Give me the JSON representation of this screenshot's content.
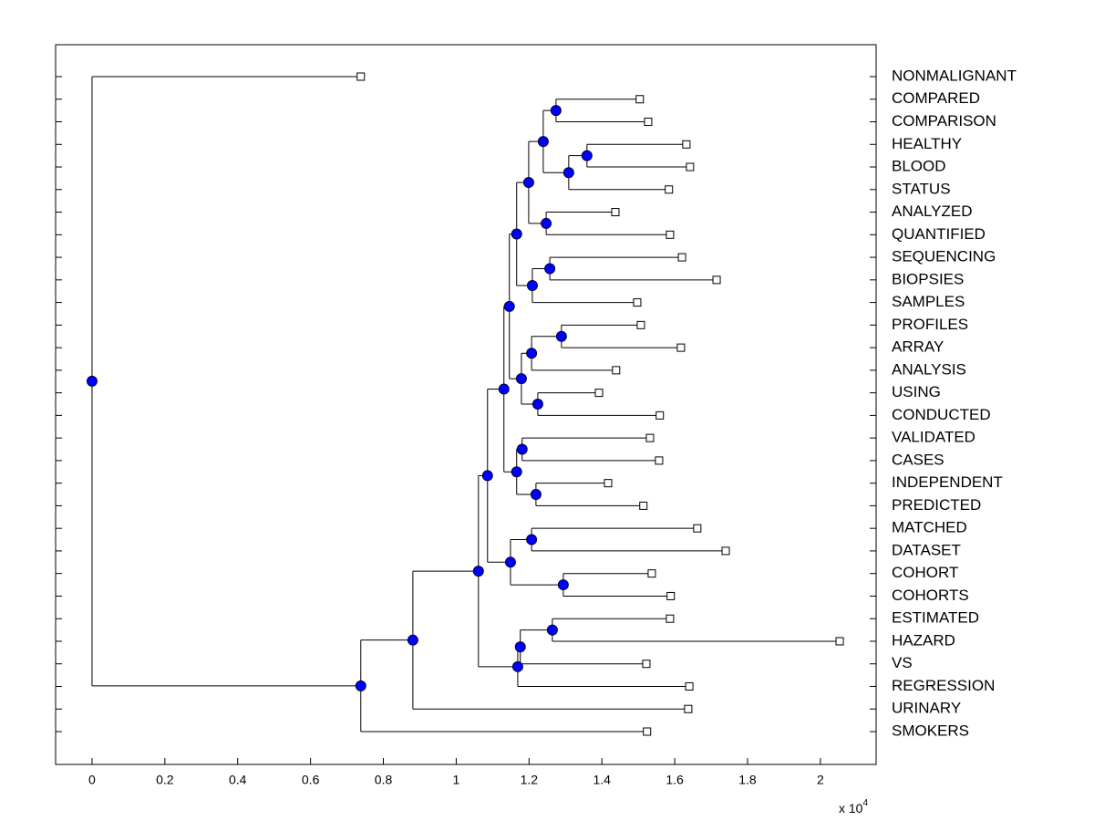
{
  "chart_data": {
    "type": "dendrogram",
    "orientation": "right",
    "xlim": [
      -0.1,
      2.153
    ],
    "xticks": [
      0,
      0.2,
      0.4,
      0.6,
      0.8,
      1,
      1.2,
      1.4,
      1.6,
      1.8,
      2
    ],
    "offset_text": {
      "base": "x 10",
      "exponent": "4"
    },
    "node_color": "#0000ff",
    "leaves": [
      {
        "label": "NONMALIGNANT",
        "value": 0.738
      },
      {
        "label": "COMPARED",
        "value": 1.504
      },
      {
        "label": "COMPARISON",
        "value": 1.527
      },
      {
        "label": "HEALTHY",
        "value": 1.632
      },
      {
        "label": "BLOOD",
        "value": 1.642
      },
      {
        "label": "STATUS",
        "value": 1.584
      },
      {
        "label": "ANALYZED",
        "value": 1.437
      },
      {
        "label": "QUANTIFIED",
        "value": 1.587
      },
      {
        "label": "SEQUENCING",
        "value": 1.62
      },
      {
        "label": "BIOPSIES",
        "value": 1.715
      },
      {
        "label": "SAMPLES",
        "value": 1.497
      },
      {
        "label": "PROFILES",
        "value": 1.507
      },
      {
        "label": "ARRAY",
        "value": 1.617
      },
      {
        "label": "ANALYSIS",
        "value": 1.439
      },
      {
        "label": "USING",
        "value": 1.392
      },
      {
        "label": "CONDUCTED",
        "value": 1.559
      },
      {
        "label": "VALIDATED",
        "value": 1.532
      },
      {
        "label": "CASES",
        "value": 1.557
      },
      {
        "label": "INDEPENDENT",
        "value": 1.417
      },
      {
        "label": "PREDICTED",
        "value": 1.514
      },
      {
        "label": "MATCHED",
        "value": 1.662
      },
      {
        "label": "DATASET",
        "value": 1.74
      },
      {
        "label": "COHORT",
        "value": 1.537
      },
      {
        "label": "COHORTS",
        "value": 1.589
      },
      {
        "label": "ESTIMATED",
        "value": 1.587
      },
      {
        "label": "HAZARD",
        "value": 2.053
      },
      {
        "label": "VS",
        "value": 1.522
      },
      {
        "label": "REGRESSION",
        "value": 1.64
      },
      {
        "label": "URINARY",
        "value": 1.637
      },
      {
        "label": "SMOKERS",
        "value": 1.524
      }
    ],
    "nodes": [
      {
        "children": [
          1,
          2
        ],
        "value": 1.274
      },
      {
        "children": [
          3,
          4
        ],
        "value": 1.359
      },
      {
        "children": [
          31,
          5
        ],
        "value": 1.309
      },
      {
        "children": [
          30,
          32
        ],
        "value": 1.239
      },
      {
        "children": [
          6,
          7
        ],
        "value": 1.247
      },
      {
        "children": [
          33,
          34
        ],
        "value": 1.199
      },
      {
        "children": [
          8,
          9
        ],
        "value": 1.257
      },
      {
        "children": [
          36,
          10
        ],
        "value": 1.209
      },
      {
        "children": [
          35,
          37
        ],
        "value": 1.166
      },
      {
        "children": [
          11,
          12
        ],
        "value": 1.289
      },
      {
        "children": [
          39,
          13
        ],
        "value": 1.207
      },
      {
        "children": [
          14,
          15
        ],
        "value": 1.224
      },
      {
        "children": [
          40,
          41
        ],
        "value": 1.179
      },
      {
        "children": [
          38,
          42
        ],
        "value": 1.146
      },
      {
        "children": [
          16,
          17
        ],
        "value": 1.181
      },
      {
        "children": [
          18,
          19
        ],
        "value": 1.219
      },
      {
        "children": [
          44,
          45
        ],
        "value": 1.166
      },
      {
        "children": [
          43,
          46
        ],
        "value": 1.131
      },
      {
        "children": [
          20,
          21
        ],
        "value": 1.207
      },
      {
        "children": [
          22,
          23
        ],
        "value": 1.294
      },
      {
        "children": [
          48,
          49
        ],
        "value": 1.149
      },
      {
        "children": [
          47,
          50
        ],
        "value": 1.086
      },
      {
        "children": [
          24,
          25
        ],
        "value": 1.264
      },
      {
        "children": [
          52,
          26
        ],
        "value": 1.176
      },
      {
        "children": [
          53,
          27
        ],
        "value": 1.169
      },
      {
        "children": [
          51,
          54
        ],
        "value": 1.061
      },
      {
        "children": [
          55,
          28
        ],
        "value": 0.881
      },
      {
        "children": [
          56,
          29
        ],
        "value": 0.738
      },
      {
        "children": [
          0,
          57
        ],
        "value": 0
      }
    ]
  }
}
